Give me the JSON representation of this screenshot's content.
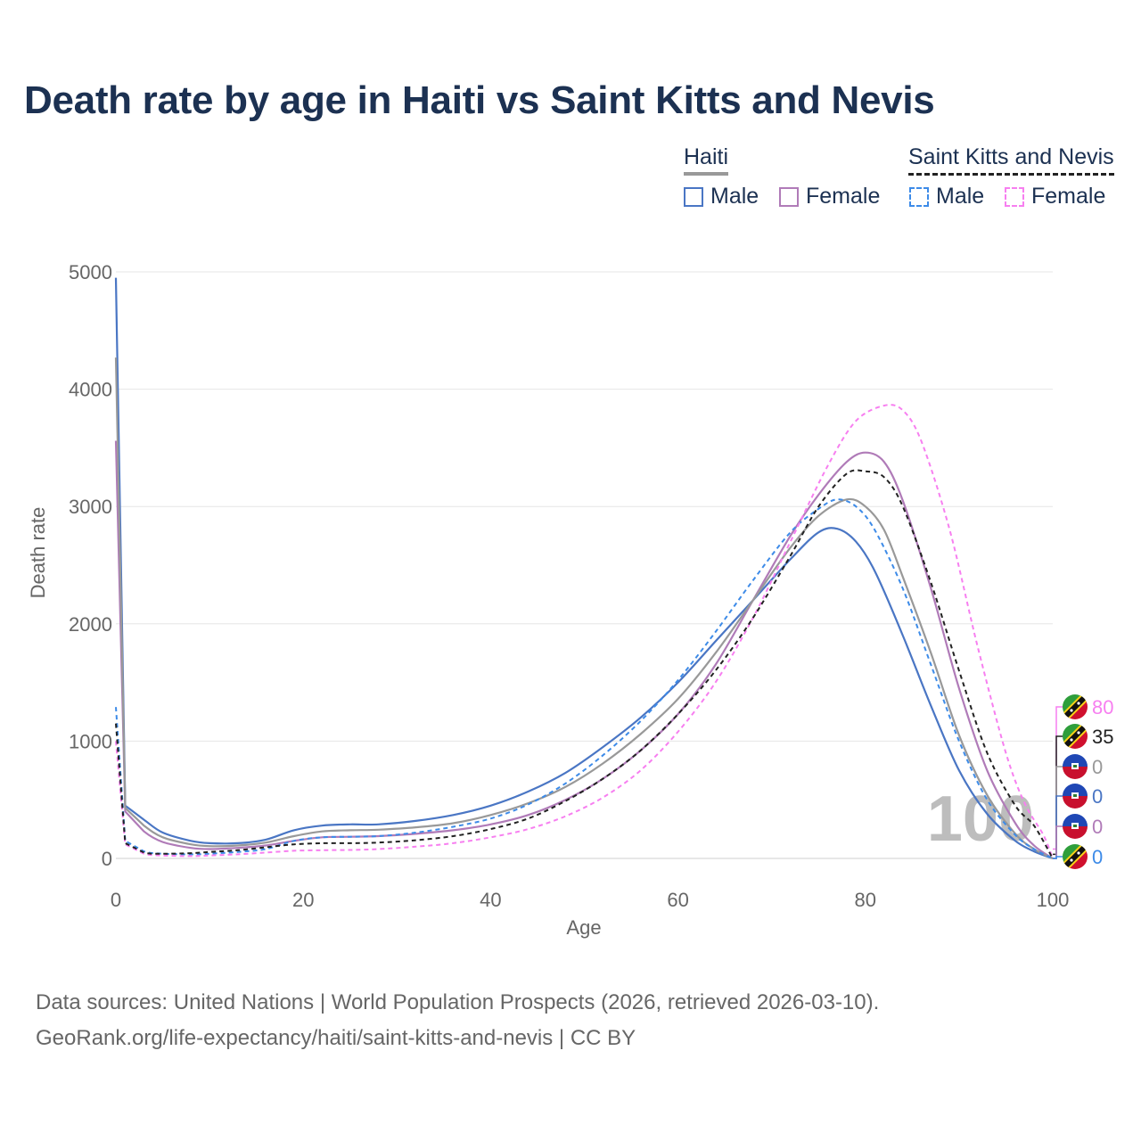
{
  "title": "Death rate by age in Haiti vs Saint Kitts and Nevis",
  "legend": {
    "groups": [
      {
        "name": "Haiti",
        "items": [
          {
            "label": "Male",
            "color": "#4a76c4",
            "dash": "solid"
          },
          {
            "label": "Female",
            "color": "#b07bb8",
            "dash": "solid"
          }
        ],
        "summary_color": "#999999"
      },
      {
        "name": "Saint Kitts and Nevis",
        "items": [
          {
            "label": "Male",
            "color": "#3d8be8",
            "dash": "dashed"
          },
          {
            "label": "Female",
            "color": "#f77ff0",
            "dash": "dashed"
          }
        ],
        "summary_color": "#222222"
      }
    ]
  },
  "watermark": "100",
  "sources": {
    "line1": "Data sources: United Nations | World Population Prospects (2026, retrieved 2026-03-10).",
    "line2": "GeoRank.org/life-expectancy/haiti/saint-kitts-and-nevis | CC BY"
  },
  "end_labels": [
    {
      "value": "80",
      "color": "#f77ff0",
      "country": "Saint Kitts and Nevis",
      "at": 80
    },
    {
      "value": "35",
      "color": "#222222",
      "country": "Saint Kitts and Nevis",
      "at": 35
    },
    {
      "value": "0",
      "color": "#999999",
      "country": "Haiti",
      "at": 0
    },
    {
      "value": "0",
      "color": "#4a76c4",
      "country": "Haiti",
      "at": 0
    },
    {
      "value": "0",
      "color": "#b07bb8",
      "country": "Haiti",
      "at": 0
    },
    {
      "value": "0",
      "color": "#3d8be8",
      "country": "Saint Kitts and Nevis",
      "at": 0
    }
  ],
  "chart_data": {
    "type": "line",
    "title": "Death rate by age in Haiti vs Saint Kitts and Nevis",
    "xlabel": "Age",
    "ylabel": "Death rate",
    "xlim": [
      0,
      100
    ],
    "ylim": [
      0,
      5000
    ],
    "xticks": [
      0,
      20,
      40,
      60,
      80,
      100
    ],
    "yticks": [
      0,
      1000,
      2000,
      3000,
      4000,
      5000
    ],
    "grid": true,
    "legend_position": "top-right",
    "series": [
      {
        "name": "Haiti Male",
        "color": "#4a76c4",
        "dash": "solid",
        "width": 2.2,
        "points": [
          [
            0,
            4950
          ],
          [
            1,
            450
          ],
          [
            3,
            330
          ],
          [
            5,
            220
          ],
          [
            8,
            150
          ],
          [
            10,
            130
          ],
          [
            13,
            130
          ],
          [
            16,
            160
          ],
          [
            19,
            240
          ],
          [
            22,
            280
          ],
          [
            25,
            290
          ],
          [
            28,
            290
          ],
          [
            32,
            320
          ],
          [
            36,
            370
          ],
          [
            40,
            450
          ],
          [
            44,
            570
          ],
          [
            48,
            730
          ],
          [
            52,
            950
          ],
          [
            56,
            1200
          ],
          [
            60,
            1500
          ],
          [
            64,
            1850
          ],
          [
            68,
            2200
          ],
          [
            72,
            2550
          ],
          [
            75,
            2780
          ],
          [
            77,
            2810
          ],
          [
            79,
            2700
          ],
          [
            81,
            2450
          ],
          [
            84,
            1900
          ],
          [
            87,
            1300
          ],
          [
            90,
            750
          ],
          [
            93,
            380
          ],
          [
            96,
            150
          ],
          [
            98,
            60
          ],
          [
            100,
            0
          ]
        ]
      },
      {
        "name": "Haiti Female",
        "color": "#b07bb8",
        "dash": "solid",
        "width": 2.2,
        "points": [
          [
            0,
            3560
          ],
          [
            1,
            400
          ],
          [
            3,
            230
          ],
          [
            5,
            140
          ],
          [
            8,
            90
          ],
          [
            10,
            80
          ],
          [
            13,
            90
          ],
          [
            16,
            110
          ],
          [
            19,
            150
          ],
          [
            22,
            180
          ],
          [
            25,
            185
          ],
          [
            28,
            190
          ],
          [
            32,
            210
          ],
          [
            36,
            240
          ],
          [
            40,
            290
          ],
          [
            44,
            370
          ],
          [
            48,
            500
          ],
          [
            52,
            680
          ],
          [
            56,
            920
          ],
          [
            60,
            1230
          ],
          [
            64,
            1650
          ],
          [
            68,
            2200
          ],
          [
            72,
            2750
          ],
          [
            75,
            3100
          ],
          [
            78,
            3380
          ],
          [
            80,
            3460
          ],
          [
            82,
            3380
          ],
          [
            84,
            3050
          ],
          [
            87,
            2300
          ],
          [
            90,
            1450
          ],
          [
            93,
            750
          ],
          [
            96,
            300
          ],
          [
            98,
            110
          ],
          [
            100,
            0
          ]
        ]
      },
      {
        "name": "Haiti (both sexes)",
        "color": "#999999",
        "dash": "solid",
        "width": 2.2,
        "points": [
          [
            0,
            4270
          ],
          [
            1,
            430
          ],
          [
            3,
            280
          ],
          [
            5,
            180
          ],
          [
            8,
            120
          ],
          [
            10,
            105
          ],
          [
            13,
            110
          ],
          [
            16,
            135
          ],
          [
            19,
            190
          ],
          [
            22,
            230
          ],
          [
            25,
            240
          ],
          [
            28,
            245
          ],
          [
            32,
            265
          ],
          [
            36,
            300
          ],
          [
            40,
            370
          ],
          [
            44,
            470
          ],
          [
            48,
            610
          ],
          [
            52,
            810
          ],
          [
            56,
            1060
          ],
          [
            60,
            1360
          ],
          [
            64,
            1750
          ],
          [
            68,
            2200
          ],
          [
            72,
            2650
          ],
          [
            75,
            2920
          ],
          [
            78,
            3060
          ],
          [
            80,
            3000
          ],
          [
            82,
            2800
          ],
          [
            84,
            2400
          ],
          [
            87,
            1750
          ],
          [
            90,
            1050
          ],
          [
            93,
            540
          ],
          [
            96,
            210
          ],
          [
            98,
            80
          ],
          [
            100,
            0
          ]
        ]
      },
      {
        "name": "Saint Kitts and Nevis Male",
        "color": "#3d8be8",
        "dash": "dashed",
        "width": 2,
        "points": [
          [
            0,
            1290
          ],
          [
            1,
            150
          ],
          [
            3,
            60
          ],
          [
            5,
            40
          ],
          [
            8,
            35
          ],
          [
            10,
            40
          ],
          [
            13,
            55
          ],
          [
            16,
            80
          ],
          [
            19,
            150
          ],
          [
            22,
            180
          ],
          [
            25,
            185
          ],
          [
            28,
            190
          ],
          [
            32,
            220
          ],
          [
            36,
            270
          ],
          [
            40,
            340
          ],
          [
            44,
            460
          ],
          [
            48,
            640
          ],
          [
            52,
            880
          ],
          [
            56,
            1170
          ],
          [
            60,
            1520
          ],
          [
            64,
            1930
          ],
          [
            68,
            2370
          ],
          [
            72,
            2780
          ],
          [
            75,
            2980
          ],
          [
            77,
            3060
          ],
          [
            79,
            3000
          ],
          [
            81,
            2800
          ],
          [
            84,
            2300
          ],
          [
            87,
            1650
          ],
          [
            90,
            1000
          ],
          [
            93,
            500
          ],
          [
            96,
            200
          ],
          [
            98,
            80
          ],
          [
            100,
            0
          ]
        ]
      },
      {
        "name": "Saint Kitts and Nevis Female",
        "color": "#f77ff0",
        "dash": "dashed",
        "width": 2,
        "points": [
          [
            0,
            1000
          ],
          [
            1,
            120
          ],
          [
            3,
            40
          ],
          [
            5,
            25
          ],
          [
            8,
            20
          ],
          [
            10,
            25
          ],
          [
            13,
            35
          ],
          [
            16,
            50
          ],
          [
            19,
            65
          ],
          [
            22,
            70
          ],
          [
            25,
            72
          ],
          [
            28,
            80
          ],
          [
            32,
            100
          ],
          [
            36,
            130
          ],
          [
            40,
            180
          ],
          [
            44,
            250
          ],
          [
            48,
            360
          ],
          [
            52,
            520
          ],
          [
            56,
            750
          ],
          [
            60,
            1080
          ],
          [
            64,
            1500
          ],
          [
            68,
            2050
          ],
          [
            72,
            2700
          ],
          [
            76,
            3350
          ],
          [
            79,
            3730
          ],
          [
            82,
            3860
          ],
          [
            84,
            3820
          ],
          [
            86,
            3550
          ],
          [
            89,
            2800
          ],
          [
            92,
            1800
          ],
          [
            95,
            900
          ],
          [
            97,
            470
          ],
          [
            99,
            200
          ],
          [
            100,
            0
          ]
        ]
      },
      {
        "name": "Saint Kitts and Nevis (both sexes)",
        "color": "#222222",
        "dash": "dashed",
        "width": 2,
        "points": [
          [
            0,
            1150
          ],
          [
            1,
            130
          ],
          [
            3,
            50
          ],
          [
            5,
            40
          ],
          [
            8,
            45
          ],
          [
            10,
            55
          ],
          [
            13,
            70
          ],
          [
            16,
            95
          ],
          [
            19,
            120
          ],
          [
            22,
            130
          ],
          [
            25,
            130
          ],
          [
            28,
            135
          ],
          [
            32,
            155
          ],
          [
            36,
            190
          ],
          [
            40,
            250
          ],
          [
            44,
            340
          ],
          [
            48,
            490
          ],
          [
            52,
            680
          ],
          [
            56,
            920
          ],
          [
            60,
            1230
          ],
          [
            64,
            1600
          ],
          [
            68,
            2050
          ],
          [
            72,
            2580
          ],
          [
            75,
            3000
          ],
          [
            78,
            3280
          ],
          [
            80,
            3300
          ],
          [
            82,
            3250
          ],
          [
            84,
            3000
          ],
          [
            87,
            2350
          ],
          [
            90,
            1600
          ],
          [
            93,
            900
          ],
          [
            96,
            450
          ],
          [
            98,
            280
          ],
          [
            100,
            0
          ]
        ]
      }
    ]
  }
}
